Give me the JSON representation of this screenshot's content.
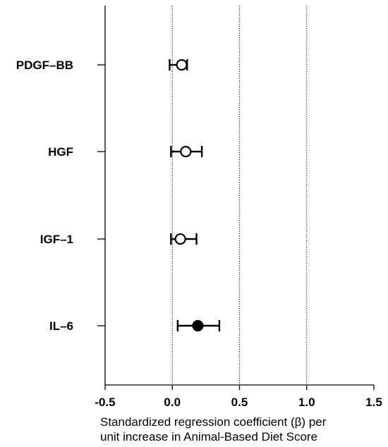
{
  "chart_data": {
    "type": "forest",
    "categories": [
      "PDGF–BB",
      "HGF",
      "IGF–1",
      "IL–6"
    ],
    "estimates": [
      0.07,
      0.1,
      0.06,
      0.19
    ],
    "ci_lower": [
      -0.02,
      -0.01,
      -0.01,
      0.04
    ],
    "ci_upper": [
      0.11,
      0.22,
      0.18,
      0.35
    ],
    "marker_filled": [
      false,
      false,
      false,
      true
    ],
    "xlim": [
      -0.5,
      1.5
    ],
    "xticks": [
      "-0.5",
      "0.0",
      "0.5",
      "1.0",
      "1.5"
    ],
    "reference_lines": [
      0.0,
      0.5,
      1.0
    ],
    "xlabel_line1": "Standardized regression coefficient (β) per",
    "xlabel_line2": "unit increase in Animal-Based Diet Score",
    "title": "",
    "grid": false
  }
}
